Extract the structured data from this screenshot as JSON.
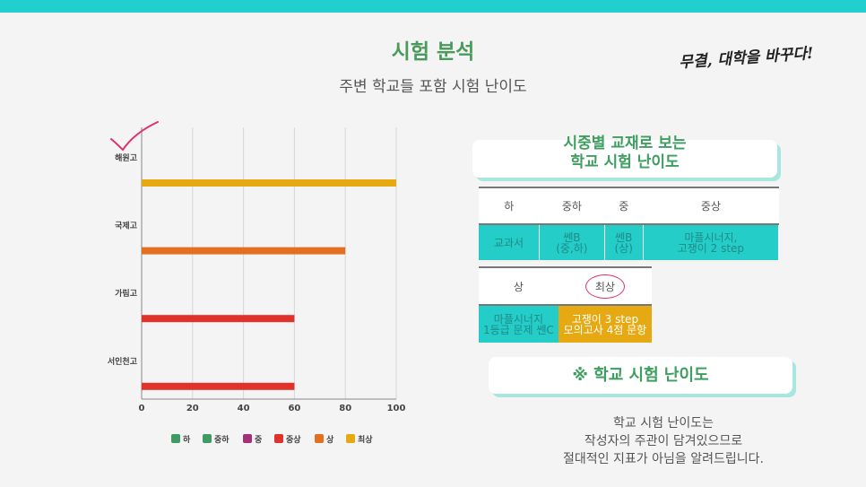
{
  "header": {
    "title": "시험 분석",
    "subtitle": "주변 학교들 포함 시험 난이도",
    "slogan": "무결, 대학을 바꾸다!"
  },
  "colors": {
    "top_bar": "#22cfcf",
    "title_green": "#4a9a5c",
    "teal": "#25cdc8",
    "orange": "#e27020",
    "red": "#e0312a",
    "gold": "#e7a912",
    "check_red": "#e0306a"
  },
  "chart_data": {
    "type": "bar",
    "orientation": "horizontal",
    "categories": [
      "해원고",
      "국제고",
      "가림고",
      "서인천고"
    ],
    "values": [
      100,
      80,
      60,
      60
    ],
    "bar_levels": [
      "최상",
      "상",
      "중상",
      "중상"
    ],
    "xlim": [
      0,
      100
    ],
    "xticks": [
      0,
      20,
      40,
      60,
      80,
      100
    ],
    "grid": "vertical",
    "legend": [
      {
        "label": "하",
        "color": "#3e9b63"
      },
      {
        "label": "중하",
        "color": "#3e9b63"
      },
      {
        "label": "중",
        "color": "#a4307a"
      },
      {
        "label": "중상",
        "color": "#e0312a"
      },
      {
        "label": "상",
        "color": "#e27020"
      },
      {
        "label": "최상",
        "color": "#e7a912"
      }
    ],
    "legend_position": "bottom",
    "annotation": "checkmark-top-left"
  },
  "difficulty_card": {
    "line1": "시중별 교재로 보는",
    "line2": "학교 시험 난이도"
  },
  "table1": {
    "headers": [
      "하",
      "중하",
      "중",
      "중상"
    ],
    "cells": [
      [
        "교과서"
      ],
      [
        "쎈B",
        "(중,하)"
      ],
      [
        "쎈B",
        "(상)"
      ],
      [
        "마플시너지,",
        "고쟁이 2 step"
      ]
    ]
  },
  "table2": {
    "headers": [
      "상",
      "최상"
    ],
    "cells": [
      [
        "마플시너지",
        "1등급 문제 쎈C"
      ],
      [
        "고쟁이 3 step",
        "모의고사 4점 문항"
      ]
    ]
  },
  "note": {
    "title": "※ 학교 시험 난이도",
    "lines": [
      "학교 시험 난이도는",
      "작성자의 주관이 담겨있으므로",
      "절대적인 지표가 아님을 알려드립니다."
    ]
  }
}
